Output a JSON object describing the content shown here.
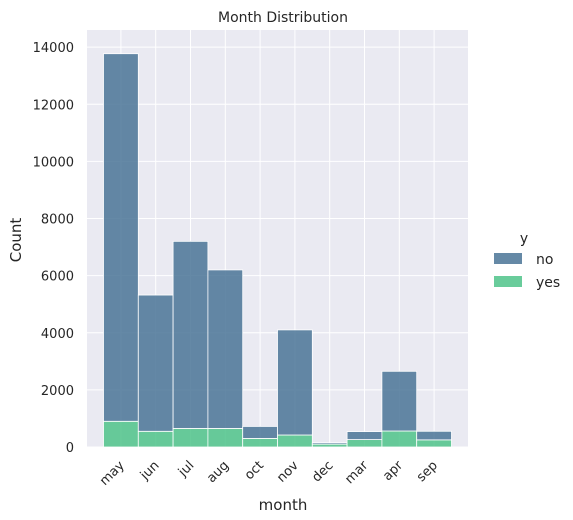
{
  "chart_data": {
    "type": "bar",
    "stacked": true,
    "title": "Month Distribution",
    "xlabel": "month",
    "ylabel": "Count",
    "categories": [
      "may",
      "jun",
      "jul",
      "aug",
      "oct",
      "nov",
      "dec",
      "mar",
      "apr",
      "sep"
    ],
    "series": [
      {
        "name": "yes",
        "color": "#4fc38a",
        "values": [
          900,
          550,
          650,
          650,
          300,
          420,
          100,
          260,
          560,
          250
        ]
      },
      {
        "name": "no",
        "color": "#4a7496",
        "values": [
          12870,
          4770,
          6550,
          5550,
          420,
          3680,
          50,
          280,
          2090,
          300
        ]
      }
    ],
    "ylim": [
      0,
      14600
    ],
    "yticks": [
      0,
      2000,
      4000,
      6000,
      8000,
      10000,
      12000,
      14000
    ],
    "grid": true,
    "background": "#eaeaf2",
    "legend": {
      "title": "y",
      "placement": "right",
      "entries": [
        {
          "label": "no",
          "color": "#4a7496"
        },
        {
          "label": "yes",
          "color": "#4fc38a"
        }
      ]
    }
  }
}
